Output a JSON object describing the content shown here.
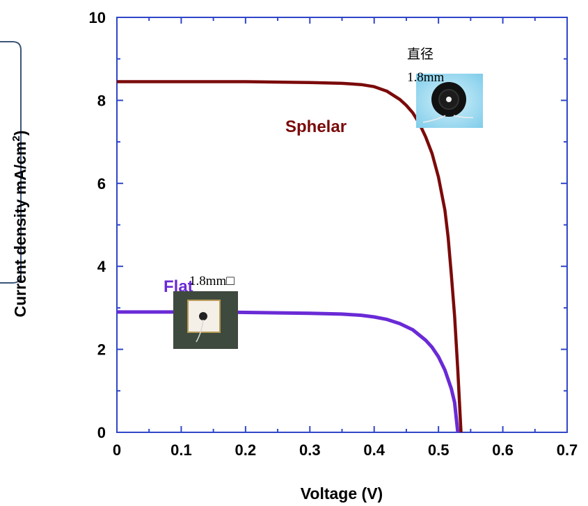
{
  "chart_data": {
    "type": "line",
    "title": "",
    "xlabel": "Voltage (V)",
    "ylabel": "Current density mA/cm",
    "ylabel_superscript": "2",
    "ylabel_suffix": ")",
    "xlim": [
      0,
      0.7
    ],
    "ylim": [
      0,
      10
    ],
    "xticks": [
      "0",
      "0.1",
      "0.2",
      "0.3",
      "0.4",
      "0.5",
      "0.6",
      "0.7"
    ],
    "yticks": [
      "0",
      "2",
      "4",
      "6",
      "8",
      "10"
    ],
    "grid": false,
    "series": [
      {
        "name": "Sphelar",
        "color": "#7b0a0a",
        "x": [
          0,
          0.05,
          0.1,
          0.15,
          0.2,
          0.25,
          0.3,
          0.35,
          0.38,
          0.4,
          0.42,
          0.44,
          0.45,
          0.46,
          0.47,
          0.48,
          0.49,
          0.5,
          0.51,
          0.515,
          0.52,
          0.525,
          0.53,
          0.535
        ],
        "y": [
          8.45,
          8.45,
          8.45,
          8.45,
          8.45,
          8.44,
          8.43,
          8.41,
          8.38,
          8.33,
          8.22,
          8.02,
          7.88,
          7.7,
          7.45,
          7.12,
          6.72,
          6.15,
          5.35,
          4.7,
          3.8,
          2.8,
          1.5,
          0
        ]
      },
      {
        "name": "Flat",
        "color": "#6a2ad6",
        "x": [
          0,
          0.05,
          0.1,
          0.15,
          0.2,
          0.25,
          0.3,
          0.35,
          0.38,
          0.4,
          0.42,
          0.44,
          0.46,
          0.48,
          0.49,
          0.5,
          0.51,
          0.52,
          0.525,
          0.53
        ],
        "y": [
          2.9,
          2.9,
          2.9,
          2.9,
          2.89,
          2.88,
          2.87,
          2.85,
          2.82,
          2.78,
          2.72,
          2.62,
          2.47,
          2.22,
          2.05,
          1.82,
          1.5,
          1.05,
          0.72,
          0
        ]
      }
    ],
    "annotations": {
      "sphelar_caption_line1": "直径",
      "sphelar_caption_line2": "1.8mm",
      "flat_caption": "1.8mm□"
    }
  }
}
